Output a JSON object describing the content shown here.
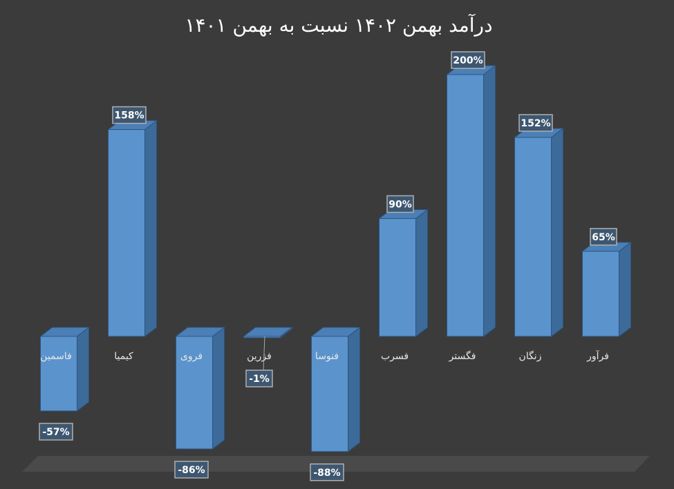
{
  "chart_data": {
    "type": "bar",
    "title": "درآمد بهمن ۱۴۰۲ نسبت به بهمن ۱۴۰۱",
    "categories": [
      "فاسمین",
      "کیمیا",
      "فروی",
      "فزرین",
      "فنوسا",
      "فسرب",
      "فگستر",
      "زنگان",
      "فرآور"
    ],
    "values": [
      -57,
      158,
      -86,
      -1,
      -88,
      90,
      200,
      152,
      65
    ],
    "value_labels": [
      "-57%",
      "158%",
      "-86%",
      "-1%",
      "-88%",
      "90%",
      "200%",
      "152%",
      "65%"
    ],
    "color": "#5b93cc"
  }
}
